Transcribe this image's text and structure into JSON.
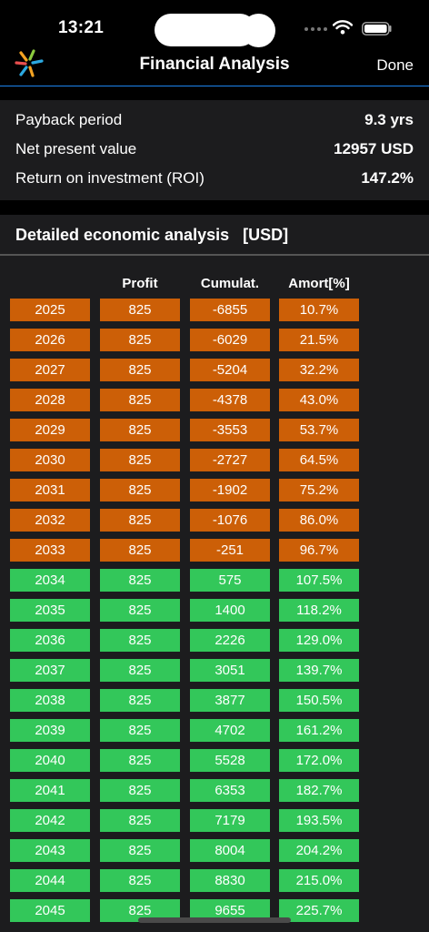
{
  "status_bar": {
    "time": "13:21"
  },
  "nav": {
    "title": "Financial Analysis",
    "done_label": "Done"
  },
  "summary": [
    {
      "label": "Payback period",
      "value": "9.3 yrs"
    },
    {
      "label": "Net present value",
      "value": "12957 USD"
    },
    {
      "label": "Return on investment (ROI)",
      "value": "147.2%"
    }
  ],
  "section": {
    "title": "Detailed economic analysis   [USD]"
  },
  "table": {
    "headers": [
      "",
      "Profit",
      "Cumulat.",
      "Amort[%]"
    ],
    "rows": [
      {
        "year": "2025",
        "profit": "825",
        "cumulative": "-6855",
        "amort": "10.7%",
        "status": "negative"
      },
      {
        "year": "2026",
        "profit": "825",
        "cumulative": "-6029",
        "amort": "21.5%",
        "status": "negative"
      },
      {
        "year": "2027",
        "profit": "825",
        "cumulative": "-5204",
        "amort": "32.2%",
        "status": "negative"
      },
      {
        "year": "2028",
        "profit": "825",
        "cumulative": "-4378",
        "amort": "43.0%",
        "status": "negative"
      },
      {
        "year": "2029",
        "profit": "825",
        "cumulative": "-3553",
        "amort": "53.7%",
        "status": "negative"
      },
      {
        "year": "2030",
        "profit": "825",
        "cumulative": "-2727",
        "amort": "64.5%",
        "status": "negative"
      },
      {
        "year": "2031",
        "profit": "825",
        "cumulative": "-1902",
        "amort": "75.2%",
        "status": "negative"
      },
      {
        "year": "2032",
        "profit": "825",
        "cumulative": "-1076",
        "amort": "86.0%",
        "status": "negative"
      },
      {
        "year": "2033",
        "profit": "825",
        "cumulative": "-251",
        "amort": "96.7%",
        "status": "negative"
      },
      {
        "year": "2034",
        "profit": "825",
        "cumulative": "575",
        "amort": "107.5%",
        "status": "positive"
      },
      {
        "year": "2035",
        "profit": "825",
        "cumulative": "1400",
        "amort": "118.2%",
        "status": "positive"
      },
      {
        "year": "2036",
        "profit": "825",
        "cumulative": "2226",
        "amort": "129.0%",
        "status": "positive"
      },
      {
        "year": "2037",
        "profit": "825",
        "cumulative": "3051",
        "amort": "139.7%",
        "status": "positive"
      },
      {
        "year": "2038",
        "profit": "825",
        "cumulative": "3877",
        "amort": "150.5%",
        "status": "positive"
      },
      {
        "year": "2039",
        "profit": "825",
        "cumulative": "4702",
        "amort": "161.2%",
        "status": "positive"
      },
      {
        "year": "2040",
        "profit": "825",
        "cumulative": "5528",
        "amort": "172.0%",
        "status": "positive"
      },
      {
        "year": "2041",
        "profit": "825",
        "cumulative": "6353",
        "amort": "182.7%",
        "status": "positive"
      },
      {
        "year": "2042",
        "profit": "825",
        "cumulative": "7179",
        "amort": "193.5%",
        "status": "positive"
      },
      {
        "year": "2043",
        "profit": "825",
        "cumulative": "8004",
        "amort": "204.2%",
        "status": "positive"
      },
      {
        "year": "2044",
        "profit": "825",
        "cumulative": "8830",
        "amort": "215.0%",
        "status": "positive"
      },
      {
        "year": "2045",
        "profit": "825",
        "cumulative": "9655",
        "amort": "225.7%",
        "status": "positive"
      }
    ]
  },
  "colors": {
    "negative": "#cc5f07",
    "positive": "#33c75a",
    "nav_divider": "#1d84ee",
    "panel": "#1c1c1e"
  },
  "icons": {
    "logo": "sunburst-logo-icon",
    "wifi": "wifi-icon",
    "battery": "battery-icon"
  }
}
